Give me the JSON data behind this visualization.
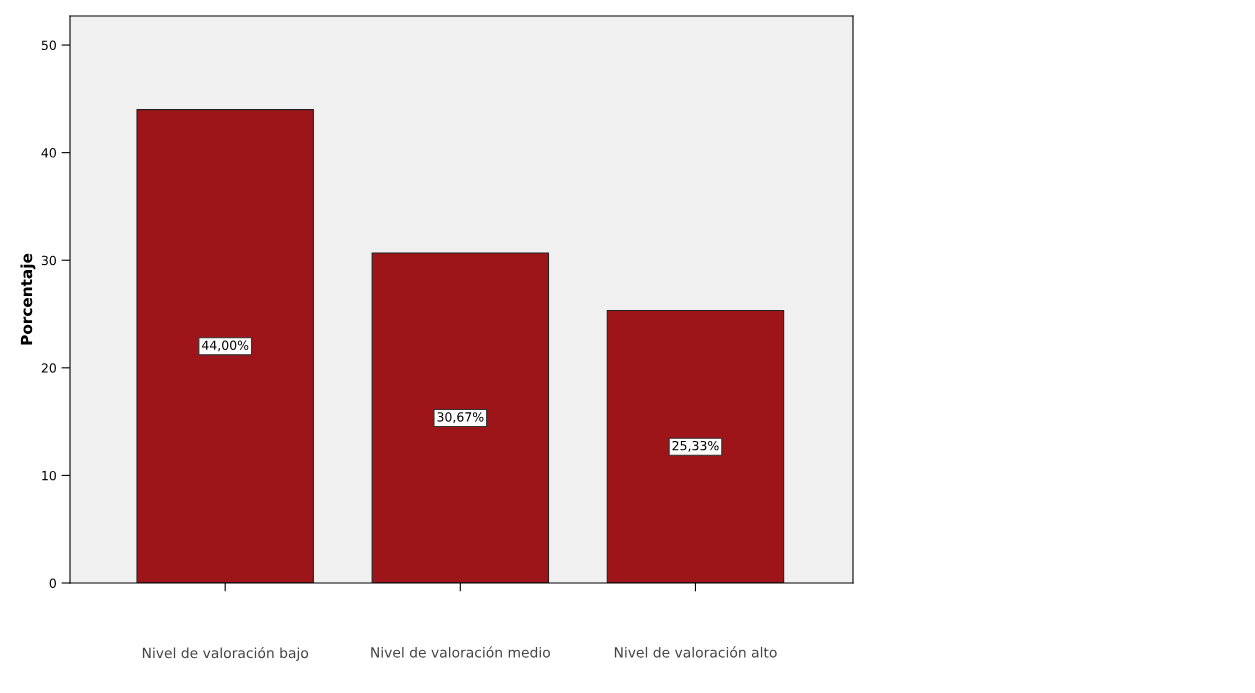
{
  "chart_data": {
    "type": "bar",
    "ylabel": "Porcentaje",
    "categories": [
      "Nivel de valoración bajo",
      "Nivel de valoración medio",
      "Nivel de valoración alto"
    ],
    "values": [
      44.0,
      30.67,
      25.33
    ],
    "value_labels": [
      "44,00%",
      "30,67%",
      "25,33%"
    ],
    "color": "#9e1519",
    "ylim": [
      0,
      52.7
    ],
    "yticks": [
      0,
      10,
      20,
      30,
      40,
      50
    ],
    "grid": false,
    "legend": false
  }
}
